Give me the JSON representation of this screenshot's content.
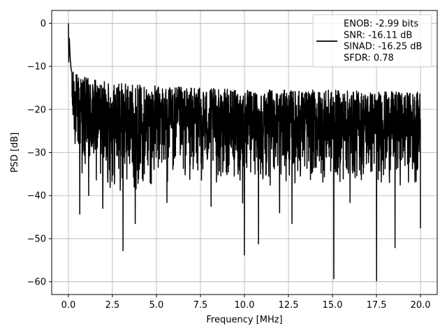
{
  "chart_data": {
    "type": "line",
    "title": "",
    "xlabel": "Frequency [MHz]",
    "ylabel": "PSD [dB]",
    "xlim": [
      -0.95,
      20.95
    ],
    "ylim": [
      -62.97,
      2.97
    ],
    "xticks": [
      0.0,
      2.5,
      5.0,
      7.5,
      10.0,
      12.5,
      15.0,
      17.5,
      20.0
    ],
    "xtick_labels": [
      "0.0",
      "2.5",
      "5.0",
      "7.5",
      "10.0",
      "12.5",
      "15.0",
      "17.5",
      "20.0"
    ],
    "yticks": [
      0,
      -10,
      -20,
      -30,
      -40,
      -50,
      -60
    ],
    "ytick_labels": [
      "0",
      "−10",
      "−20",
      "−30",
      "−40",
      "−50",
      "−60"
    ],
    "grid": true,
    "legend_position": "top-right",
    "series": [
      {
        "name": "ENOB: -2.99 bits\nSNR: -16.11 dB\nSINAD: -16.25 dB\nSFDR: 0.78",
        "color": "#000000",
        "x_start": 0.0,
        "x_end": 20.0,
        "point_count": 2000,
        "peak_points": [
          [
            0.0,
            0.0
          ],
          [
            0.02,
            -9.0
          ],
          [
            0.05,
            -3.5
          ],
          [
            0.1,
            -8.0
          ],
          [
            0.15,
            -10.5
          ]
        ],
        "spectrum_envelope": {
          "x": [
            0.2,
            1.0,
            2.0,
            5.0,
            10.0,
            15.0,
            20.0
          ],
          "upper": [
            -11.0,
            -12.5,
            -13.5,
            -14.5,
            -15.5,
            -15.5,
            -16.0
          ],
          "lower": [
            -30.0,
            -38.0,
            -41.0,
            -38.0,
            -38.0,
            -38.0,
            -38.0
          ]
        },
        "dips": [
          [
            0.65,
            -44.3
          ],
          [
            1.15,
            -40.0
          ],
          [
            1.95,
            -43.0
          ],
          [
            3.1,
            -52.8
          ],
          [
            3.8,
            -46.5
          ],
          [
            5.6,
            -41.6
          ],
          [
            8.1,
            -42.5
          ],
          [
            9.9,
            -41.7
          ],
          [
            10.0,
            -53.8
          ],
          [
            10.8,
            -51.2
          ],
          [
            12.0,
            -44.0
          ],
          [
            12.7,
            -46.5
          ],
          [
            15.08,
            -59.3
          ],
          [
            16.0,
            -41.6
          ],
          [
            17.5,
            -59.8
          ],
          [
            18.55,
            -52.1
          ],
          [
            20.0,
            -47.6
          ]
        ]
      }
    ]
  }
}
